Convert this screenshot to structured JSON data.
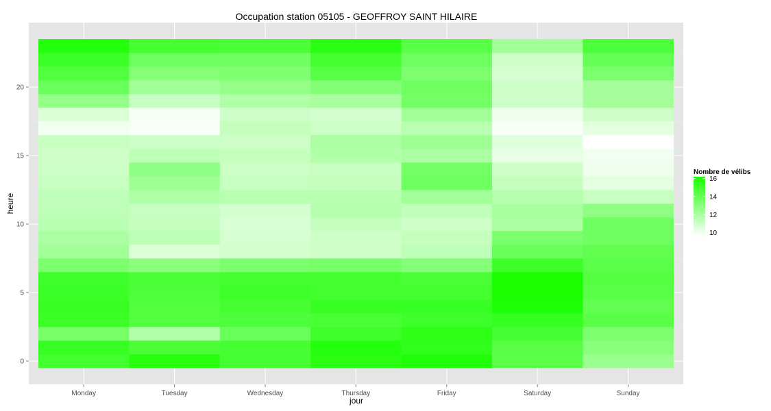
{
  "chart_data": {
    "type": "heatmap",
    "title": "Occupation station 05105 - GEOFFROY SAINT HILAIRE",
    "xlabel": "jour",
    "ylabel": "heure",
    "categories": [
      "Monday",
      "Tuesday",
      "Wednesday",
      "Thursday",
      "Friday",
      "Saturday",
      "Sunday"
    ],
    "hours": [
      0,
      1,
      2,
      3,
      4,
      5,
      6,
      7,
      8,
      9,
      10,
      11,
      12,
      13,
      14,
      15,
      16,
      17,
      18,
      19,
      20,
      21,
      22,
      23
    ],
    "ylim": [
      -0.5,
      23.5
    ],
    "y_ticks": [
      0,
      5,
      10,
      15,
      20
    ],
    "color_scale": {
      "low": "#ffffff",
      "high": "#19ff00",
      "min": 9.6,
      "max": 16.2
    },
    "legend": {
      "title": "Nombre de vélibs",
      "ticks": [
        10,
        12,
        14,
        16
      ],
      "position": "right"
    },
    "grid": true,
    "values": {
      "Monday": [
        15.0,
        15.3,
        13.5,
        15.2,
        15.3,
        15.2,
        15.1,
        13.4,
        12.3,
        12.0,
        11.6,
        11.5,
        11.4,
        11.2,
        11.1,
        11.0,
        11.2,
        10.0,
        10.6,
        12.7,
        13.9,
        14.6,
        15.2,
        15.9
      ],
      "Tuesday": [
        15.8,
        14.8,
        11.8,
        14.6,
        14.6,
        14.7,
        14.8,
        12.9,
        10.6,
        11.5,
        11.3,
        11.2,
        11.9,
        12.4,
        12.8,
        11.5,
        11.1,
        9.8,
        9.9,
        11.2,
        12.3,
        13.1,
        13.8,
        14.9
      ],
      "Wednesday": [
        14.9,
        14.9,
        13.9,
        14.7,
        14.9,
        15.1,
        15.0,
        13.4,
        10.9,
        10.8,
        10.7,
        10.9,
        11.6,
        11.2,
        11.1,
        11.3,
        11.0,
        11.3,
        11.0,
        11.9,
        12.7,
        13.3,
        13.7,
        14.8
      ],
      "Thursday": [
        15.7,
        15.9,
        15.1,
        14.8,
        15.3,
        15.0,
        15.0,
        13.5,
        11.0,
        11.0,
        11.3,
        11.7,
        11.6,
        11.3,
        11.2,
        11.8,
        12.0,
        11.1,
        10.9,
        12.1,
        13.2,
        14.4,
        15.0,
        15.7
      ],
      "Friday": [
        16.0,
        15.5,
        15.6,
        15.1,
        15.3,
        15.0,
        14.8,
        13.1,
        11.5,
        11.3,
        11.0,
        11.4,
        12.3,
        13.7,
        13.6,
        12.0,
        12.4,
        11.6,
        12.3,
        13.6,
        13.7,
        13.3,
        13.8,
        14.4
      ],
      "Saturday": [
        14.3,
        14.4,
        14.9,
        15.4,
        16.1,
        16.4,
        16.4,
        15.2,
        13.9,
        13.4,
        12.0,
        12.1,
        11.7,
        11.3,
        11.0,
        10.3,
        10.5,
        9.8,
        10.1,
        11.0,
        11.0,
        10.8,
        11.0,
        12.3
      ],
      "Sunday": [
        12.5,
        13.0,
        13.3,
        14.4,
        14.1,
        14.4,
        14.5,
        14.3,
        14.1,
        13.7,
        13.7,
        12.8,
        11.2,
        10.4,
        10.1,
        10.0,
        9.6,
        10.4,
        11.0,
        12.2,
        12.2,
        13.4,
        14.0,
        14.7
      ]
    }
  }
}
